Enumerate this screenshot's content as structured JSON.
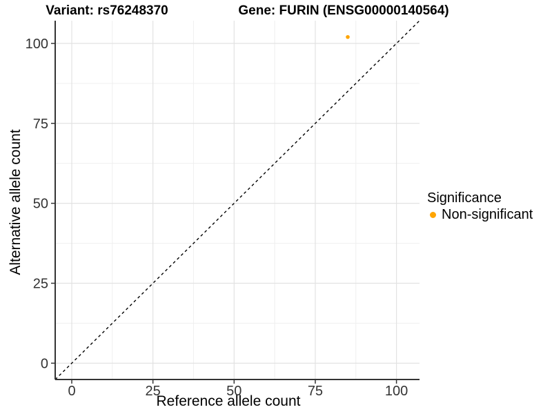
{
  "chart_data": {
    "type": "scatter",
    "title_left": "Variant: rs76248370",
    "title_right": "Gene: FURIN (ENSG00000140564)",
    "xlabel": "Reference allele count",
    "ylabel": "Alternative allele count",
    "xlim": [
      -5.1,
      107.1
    ],
    "ylim": [
      -5.1,
      107.1
    ],
    "xticks": [
      0,
      25,
      50,
      75,
      100
    ],
    "yticks": [
      0,
      25,
      50,
      75,
      100
    ],
    "xminor": [
      12.5,
      37.5,
      62.5,
      87.5
    ],
    "yminor": [
      12.5,
      37.5,
      62.5,
      87.5
    ],
    "grid": "major+minor",
    "identity_line": {
      "equation": "y = x",
      "style": "dashed",
      "color": "#000000"
    },
    "series": [
      {
        "name": "Non-significant",
        "color": "#FFA500",
        "points": [
          {
            "x": 85,
            "y": 102
          }
        ]
      }
    ],
    "legend": {
      "title": "Significance",
      "position": "right",
      "items": [
        {
          "label": "Non-significant",
          "color": "#FFA500"
        }
      ]
    }
  },
  "colors": {
    "background": "#FFFFFF",
    "axis_line": "#333333",
    "tick_label": "#333333",
    "grid_major": "#E2E2E2",
    "grid_minor": "#EFEFEF"
  }
}
